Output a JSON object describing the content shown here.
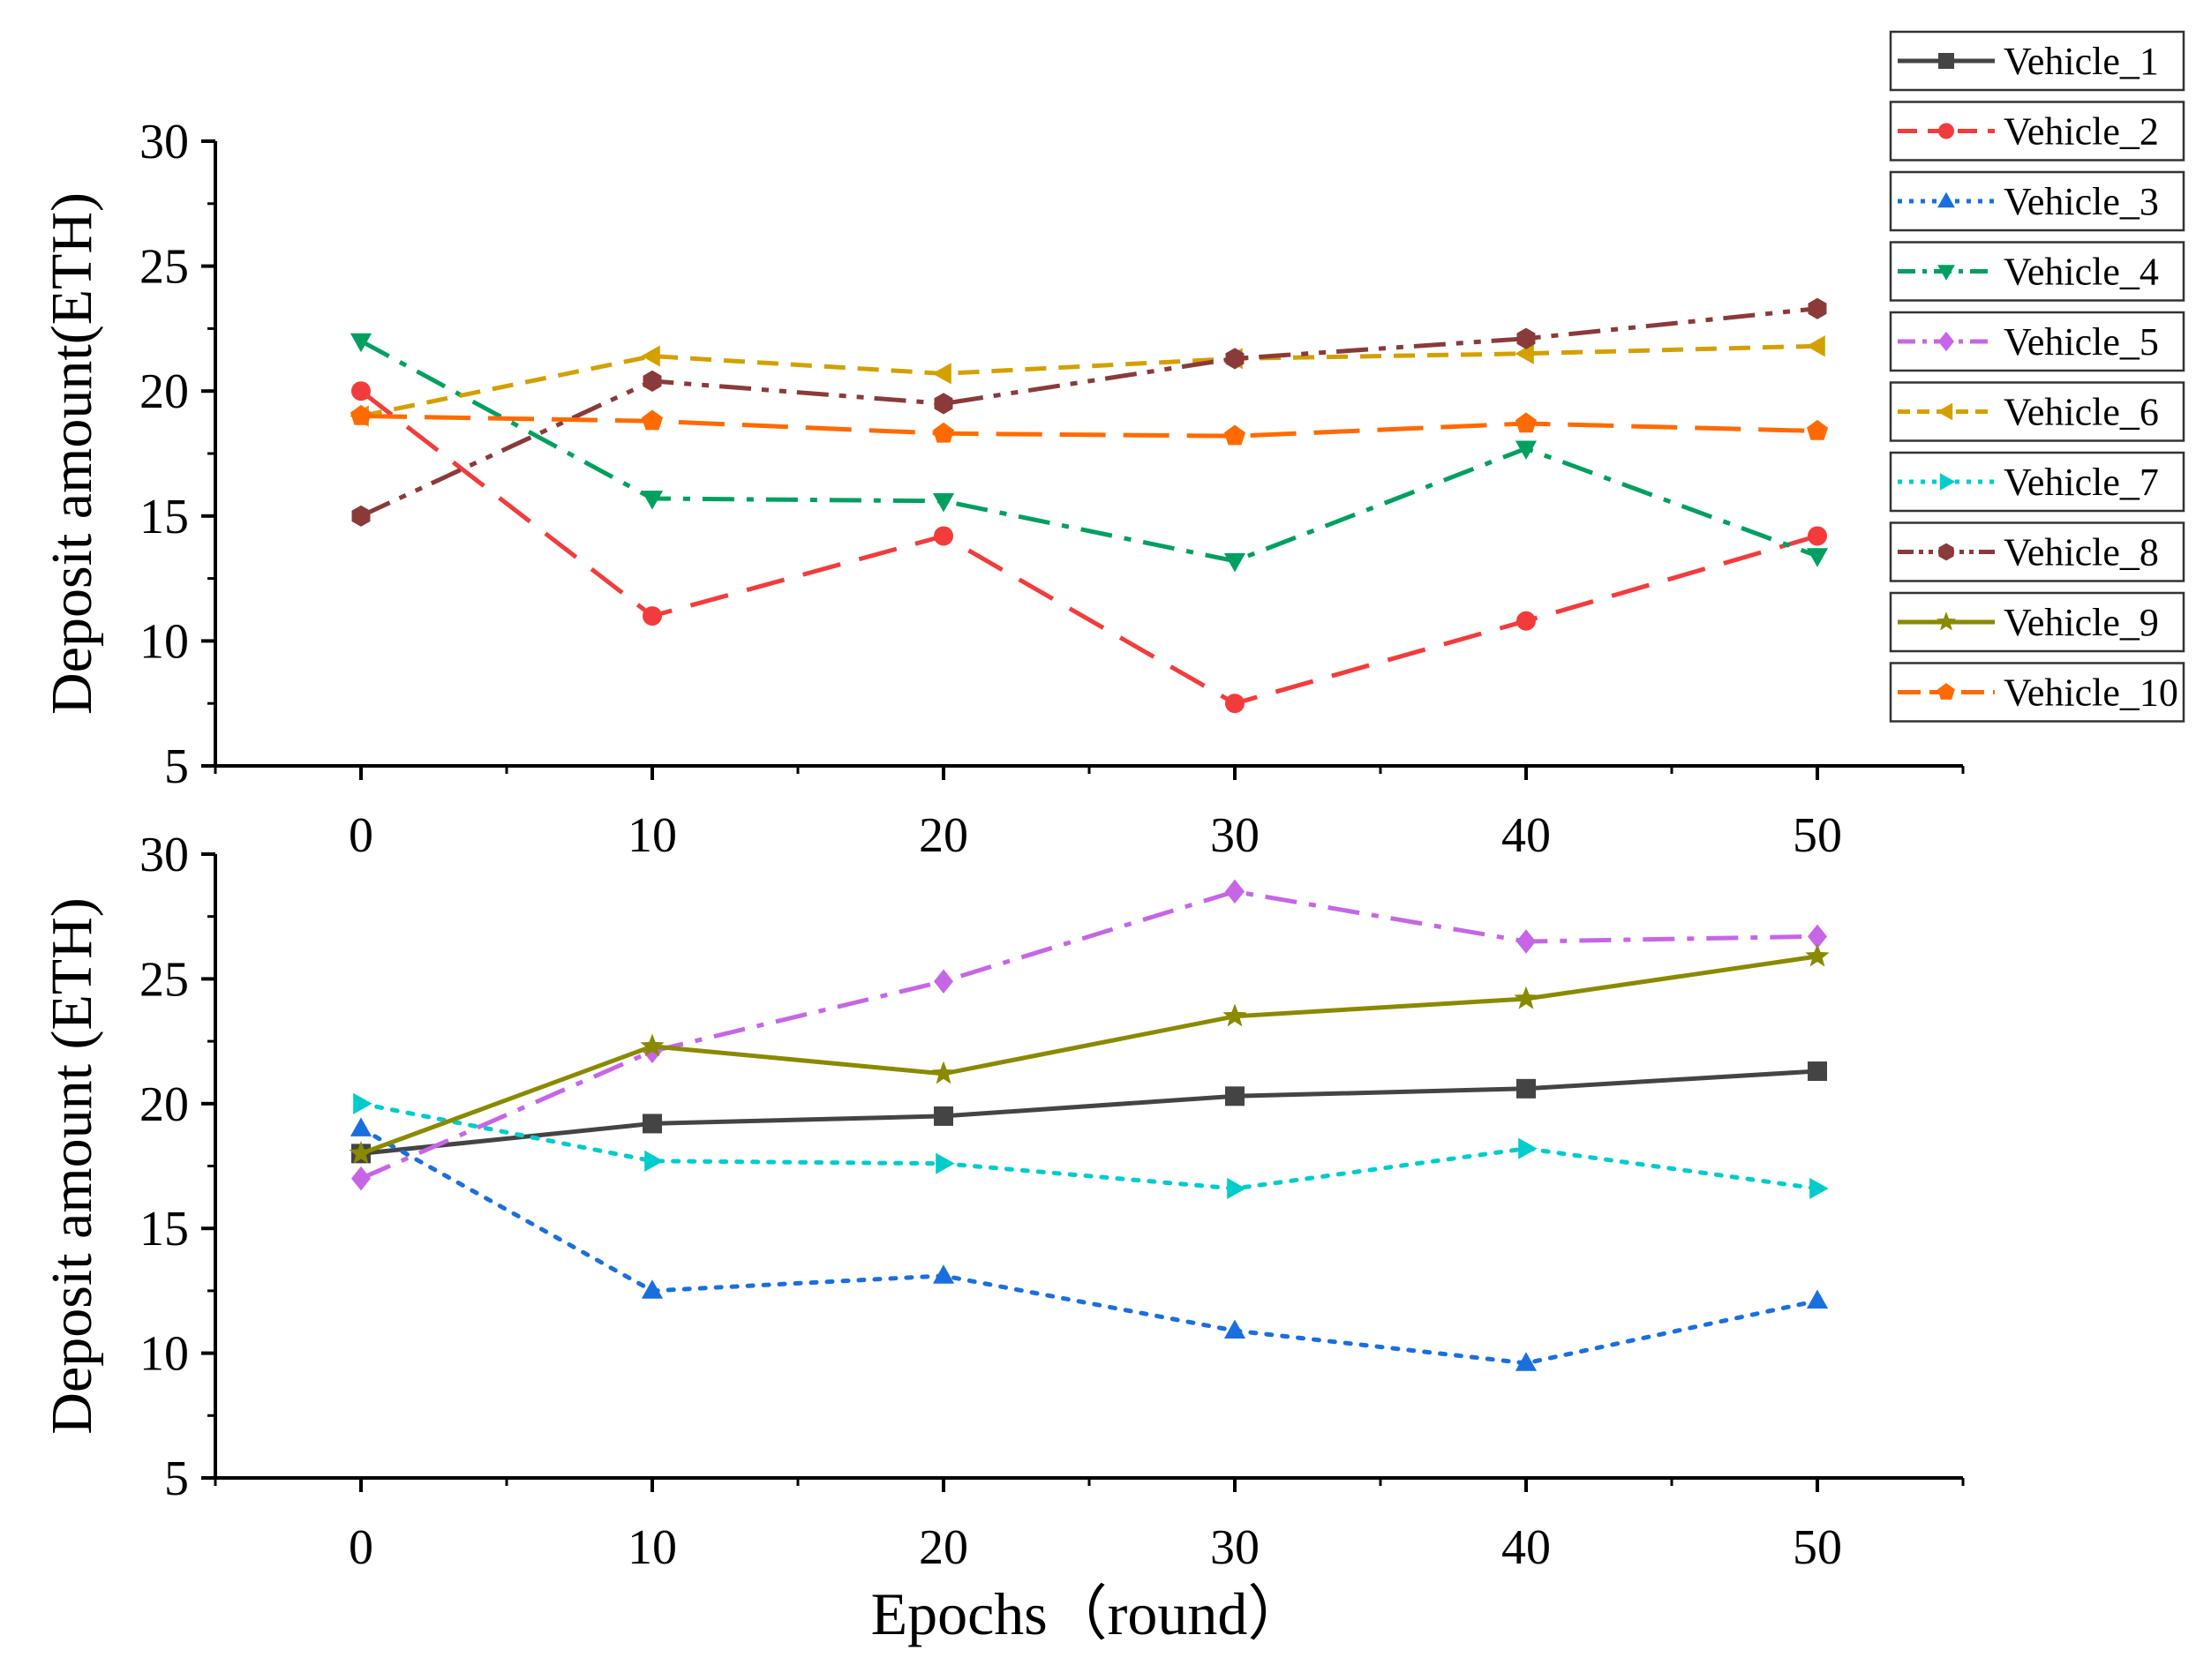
{
  "chart_data": [
    {
      "type": "line",
      "panel": "top",
      "ylabel": "Deposit amount(ETH)",
      "xlabel": "",
      "ylim": [
        5,
        30
      ],
      "xlim": [
        -5,
        55
      ],
      "y_ticks": [
        "5",
        "10",
        "15",
        "20",
        "25",
        "30"
      ],
      "x_ticks": [
        "0",
        "10",
        "20",
        "30",
        "40",
        "50"
      ],
      "x": [
        0,
        10,
        20,
        30,
        40,
        50
      ],
      "series": [
        {
          "name": "Vehicle_2",
          "color": "#f23c3c",
          "marker": "circle",
          "dash": "dash",
          "values": [
            20.0,
            11.0,
            14.2,
            7.5,
            10.8,
            14.2
          ]
        },
        {
          "name": "Vehicle_4",
          "color": "#00a060",
          "marker": "triangle-down",
          "dash": "dashdot",
          "values": [
            22.0,
            15.7,
            15.6,
            13.2,
            17.7,
            13.4
          ]
        },
        {
          "name": "Vehicle_6",
          "color": "#d4a000",
          "marker": "triangle-left",
          "dash": "shortdash",
          "values": [
            19.0,
            21.4,
            20.7,
            21.3,
            21.5,
            21.8
          ]
        },
        {
          "name": "Vehicle_8",
          "color": "#8b3a3a",
          "marker": "hexagon",
          "dash": "dashdotdot",
          "values": [
            15.0,
            20.4,
            19.5,
            21.3,
            22.1,
            23.3
          ]
        },
        {
          "name": "Vehicle_10",
          "color": "#ff6a00",
          "marker": "pentagon",
          "dash": "longdash",
          "values": [
            19.0,
            18.8,
            18.3,
            18.2,
            18.7,
            18.4
          ]
        }
      ]
    },
    {
      "type": "line",
      "panel": "bottom",
      "ylabel": "Deposit amount (ETH)",
      "xlabel": "Epochs（round）",
      "ylim": [
        5,
        30
      ],
      "xlim": [
        -5,
        55
      ],
      "y_ticks": [
        "5",
        "10",
        "15",
        "20",
        "25",
        "30"
      ],
      "x_ticks": [
        "0",
        "10",
        "20",
        "30",
        "40",
        "50"
      ],
      "x": [
        0,
        10,
        20,
        30,
        40,
        50
      ],
      "series": [
        {
          "name": "Vehicle_1",
          "color": "#444444",
          "marker": "square",
          "dash": "solid",
          "values": [
            18.0,
            19.2,
            19.5,
            20.3,
            20.6,
            21.3
          ]
        },
        {
          "name": "Vehicle_3",
          "color": "#1a6fdf",
          "marker": "triangle-up",
          "dash": "dot",
          "values": [
            19.0,
            12.5,
            13.1,
            10.9,
            9.6,
            12.1
          ]
        },
        {
          "name": "Vehicle_5",
          "color": "#c666e6",
          "marker": "diamond",
          "dash": "dashdot",
          "values": [
            17.0,
            22.1,
            24.9,
            28.5,
            26.5,
            26.7
          ]
        },
        {
          "name": "Vehicle_7",
          "color": "#00cccc",
          "marker": "triangle-right",
          "dash": "dot",
          "values": [
            20.0,
            17.7,
            17.6,
            16.6,
            18.2,
            16.6
          ]
        },
        {
          "name": "Vehicle_9",
          "color": "#8a8a00",
          "marker": "star",
          "dash": "solid",
          "values": [
            18.0,
            22.3,
            21.2,
            23.5,
            24.2,
            25.9
          ]
        }
      ]
    }
  ],
  "legend": {
    "placement": "top-right",
    "entries": [
      {
        "label": "Vehicle_1",
        "color": "#444444",
        "marker": "square",
        "dash": "solid"
      },
      {
        "label": "Vehicle_2",
        "color": "#f23c3c",
        "marker": "circle",
        "dash": "dash"
      },
      {
        "label": "Vehicle_3",
        "color": "#1a6fdf",
        "marker": "triangle-up",
        "dash": "dot"
      },
      {
        "label": "Vehicle_4",
        "color": "#00a060",
        "marker": "triangle-down",
        "dash": "dashdot"
      },
      {
        "label": "Vehicle_5",
        "color": "#c666e6",
        "marker": "diamond",
        "dash": "dashdot"
      },
      {
        "label": "Vehicle_6",
        "color": "#d4a000",
        "marker": "triangle-left",
        "dash": "shortdash"
      },
      {
        "label": "Vehicle_7",
        "color": "#00cccc",
        "marker": "triangle-right",
        "dash": "dot"
      },
      {
        "label": "Vehicle_8",
        "color": "#8b3a3a",
        "marker": "hexagon",
        "dash": "dashdotdot"
      },
      {
        "label": "Vehicle_9",
        "color": "#8a8a00",
        "marker": "star",
        "dash": "solid"
      },
      {
        "label": "Vehicle_10",
        "color": "#ff6a00",
        "marker": "pentagon",
        "dash": "longdash"
      }
    ]
  }
}
